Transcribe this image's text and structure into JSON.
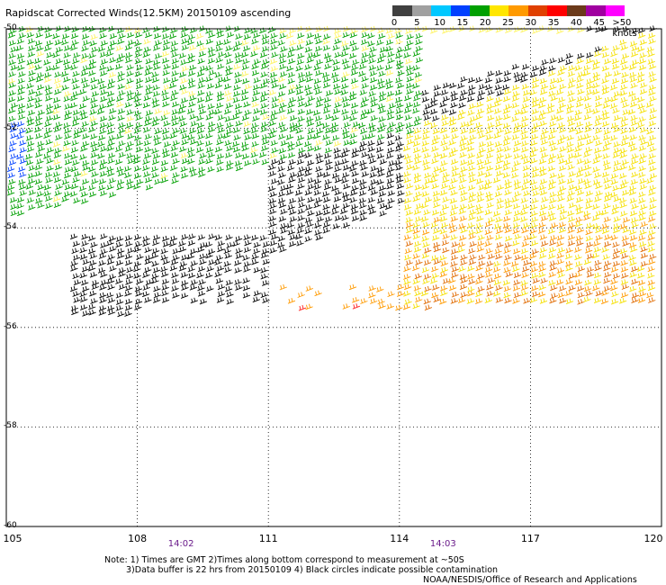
{
  "title": "Rapidscat Corrected Winds(12.5KM) 20150109 ascending",
  "legend": {
    "labels": [
      "0",
      "5",
      "10",
      "15",
      "20",
      "25",
      "30",
      "35",
      "40",
      "45",
      ">50 knots"
    ],
    "colors": [
      "#404040",
      "#a0a0a0",
      "#00c8ff",
      "#0040ff",
      "#00a000",
      "#ffe600",
      "#ff9a00",
      "#e04000",
      "#ff0000",
      "#6b3a1a",
      "#a000a0",
      "#ff00ff"
    ]
  },
  "map": {
    "lon_ticks": [
      "105",
      "108",
      "111",
      "114",
      "117",
      "120"
    ],
    "lat_ticks": [
      "-50",
      "-52",
      "-54",
      "-56",
      "-58",
      "-60"
    ],
    "lon_range": [
      105,
      120
    ],
    "lat_range": [
      -50,
      -60
    ],
    "grid": "dotted"
  },
  "times": [
    {
      "label": "14:02",
      "lon": 109
    },
    {
      "label": "14:03",
      "lon": 115
    }
  ],
  "notes": {
    "line1": "Note: 1) Times are GMT 2)Times along bottom correspond to measurement at ~50S",
    "line2": "3)Data buffer is 22 hrs from 20150109 4) Black circles indicate possible contamination",
    "line3": "NOAA/NESDIS/Office of Research and Applications"
  }
}
